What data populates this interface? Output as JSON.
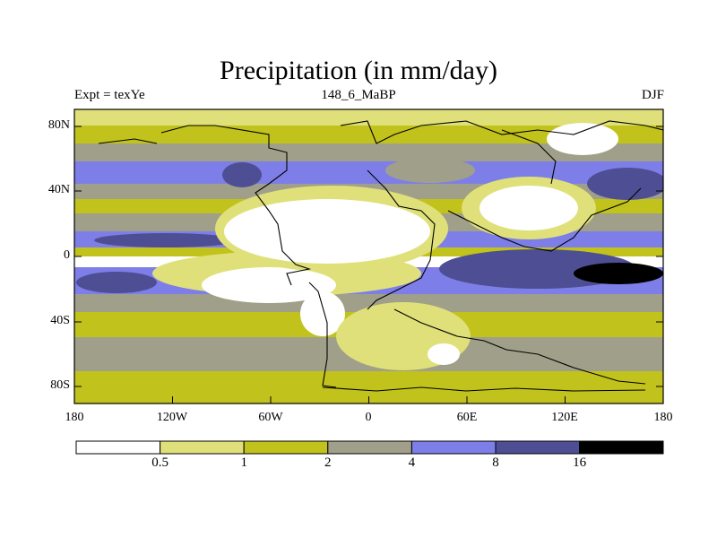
{
  "title": "Precipitation (in mm/day)",
  "left_label": "Expt = texYe",
  "center_label": "148_6_MaBP",
  "right_label": "DJF",
  "lat_ticks": [
    "80N",
    "40N",
    "0",
    "40S",
    "80S"
  ],
  "lon_ticks": [
    "180",
    "120W",
    "60W",
    "0",
    "60E",
    "120E",
    "180"
  ],
  "legend": {
    "colors": [
      "#ffffff",
      "#e0e07a",
      "#c2c21c",
      "#a0a08a",
      "#7e7ee8",
      "#4e4e94",
      "#000000"
    ],
    "labels": [
      "0.5",
      "1",
      "2",
      "4",
      "8",
      "16"
    ]
  }
}
